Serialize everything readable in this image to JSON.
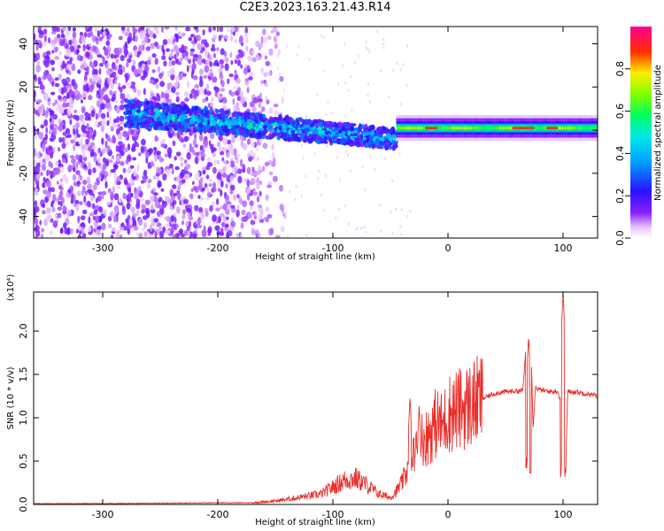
{
  "title": "C2E3.2023.163.21.43.R14",
  "chart_data": [
    {
      "type": "heatmap",
      "xlabel": "Height of straight line (km)",
      "ylabel": "Frequency (Hz)",
      "xlim": [
        -360,
        130
      ],
      "ylim": [
        -50,
        48
      ],
      "x_ticks": [
        -300,
        -200,
        -100,
        0,
        100
      ],
      "y_ticks": [
        -40,
        -20,
        0,
        20,
        40
      ],
      "colorbar": {
        "label": "Normalized spectral amplitude",
        "range": [
          0.0,
          1.0
        ],
        "ticks": [
          "0.0",
          "0.2",
          "0.4",
          "0.6",
          "0.8"
        ],
        "colormap": "white-purple-blue-cyan-green-yellow-red-magenta"
      },
      "features": [
        {
          "x_range": [
            -360,
            -170
          ],
          "freq_range": [
            -50,
            48
          ],
          "amplitude": [
            0.0,
            0.15
          ],
          "note": "broad noise"
        },
        {
          "x_range": [
            -280,
            -45
          ],
          "freq_center": 2,
          "freq_halfwidth": 8,
          "amplitude": [
            0.1,
            0.35
          ],
          "note": "signal band narrowing"
        },
        {
          "x_range": [
            -45,
            130
          ],
          "freq_center": 1,
          "freq_halfwidth": 2,
          "amplitude": [
            0.4,
            1.0
          ],
          "note": "strong narrow line"
        }
      ]
    },
    {
      "type": "line",
      "xlabel": "Height of straight line (km)",
      "ylabel": "SNR (10 * v/v)",
      "y_multiplier": "(x10⁴)",
      "xlim": [
        -360,
        130
      ],
      "ylim": [
        0.0,
        2.45
      ],
      "x_ticks": [
        -300,
        -200,
        -100,
        0,
        100
      ],
      "y_ticks": [
        0.0,
        0.5,
        1.0,
        1.5,
        2.0
      ],
      "color": "#e8302c",
      "series": [
        {
          "x": [
            -360,
            -300,
            -200,
            -170,
            -150,
            -130,
            -110,
            -100,
            -90,
            -80,
            -70,
            -60,
            -50,
            -45,
            -40,
            -35,
            -30,
            -28,
            -25,
            -22,
            -20,
            -15,
            -10,
            -5,
            0,
            10,
            20,
            30,
            40,
            50,
            60,
            65,
            68,
            70,
            72,
            74,
            76,
            80,
            90,
            95,
            98,
            100,
            102,
            104,
            110,
            120,
            130
          ],
          "y": [
            0.01,
            0.01,
            0.02,
            0.02,
            0.04,
            0.08,
            0.12,
            0.2,
            0.28,
            0.3,
            0.22,
            0.12,
            0.08,
            0.15,
            0.25,
            0.4,
            0.55,
            0.7,
            0.6,
            0.8,
            0.75,
            0.85,
            0.95,
            0.9,
            1.05,
            1.1,
            1.15,
            1.22,
            1.28,
            1.3,
            1.31,
            1.31,
            1.85,
            0.6,
            1.9,
            0.9,
            1.35,
            1.32,
            1.3,
            1.31,
            1.2,
            2.4,
            0.3,
            1.3,
            1.3,
            1.28,
            1.25
          ],
          "spikes": [
            {
              "x": -33,
              "peak": 1.25,
              "min": 0.35
            },
            {
              "x": -25,
              "peak": 1.15,
              "min": 0.55
            },
            {
              "x": 70,
              "peak": 1.95,
              "min": 0.35
            },
            {
              "x": 100,
              "peak": 2.45,
              "min": 0.28
            }
          ]
        }
      ]
    }
  ]
}
